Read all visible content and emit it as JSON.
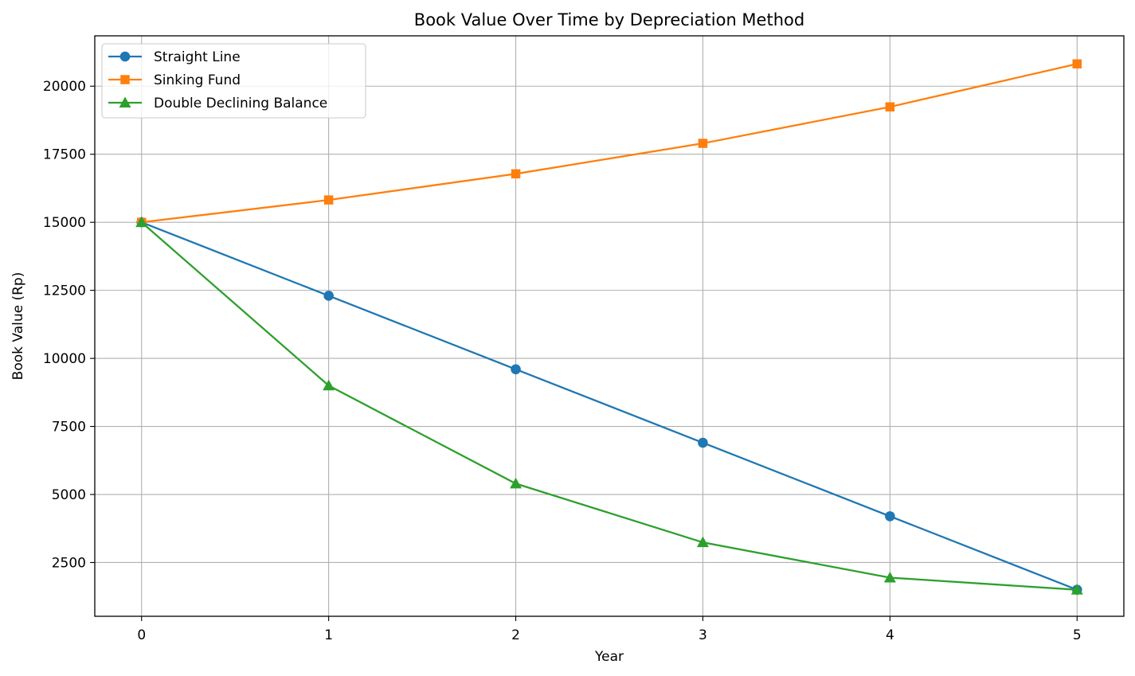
{
  "chart_data": {
    "type": "line",
    "title": "Book Value Over Time by Depreciation Method",
    "xlabel": "Year",
    "ylabel": "Book Value (Rp)",
    "x": [
      0,
      1,
      2,
      3,
      4,
      5
    ],
    "xlim": [
      -0.25,
      5.25
    ],
    "ylim": [
      525,
      21850
    ],
    "xticks": [
      "0",
      "1",
      "2",
      "3",
      "4",
      "5"
    ],
    "yticks": [
      2500,
      5000,
      7500,
      10000,
      12500,
      15000,
      17500,
      20000
    ],
    "ytick_labels": [
      "2500",
      "5000",
      "7500",
      "10000",
      "12500",
      "15000",
      "17500",
      "20000"
    ],
    "grid": true,
    "legend_position": "top-left",
    "series": [
      {
        "name": "Straight Line",
        "color": "#1f77b4",
        "marker": "circle",
        "values": [
          15000,
          12300,
          9600,
          6900,
          4200,
          1500
        ]
      },
      {
        "name": "Sinking Fund",
        "color": "#ff7f0e",
        "marker": "square",
        "values": [
          15000,
          15820,
          16780,
          17900,
          19240,
          20820
        ]
      },
      {
        "name": "Double Declining Balance",
        "color": "#2ca02c",
        "marker": "triangle",
        "values": [
          15000,
          9000,
          5400,
          3240,
          1944,
          1500
        ]
      }
    ]
  }
}
